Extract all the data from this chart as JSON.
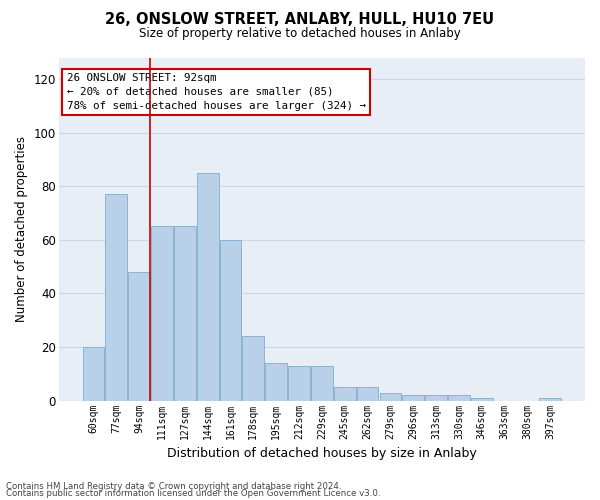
{
  "title1": "26, ONSLOW STREET, ANLABY, HULL, HU10 7EU",
  "title2": "Size of property relative to detached houses in Anlaby",
  "xlabel": "Distribution of detached houses by size in Anlaby",
  "ylabel": "Number of detached properties",
  "categories": [
    "60sqm",
    "77sqm",
    "94sqm",
    "111sqm",
    "127sqm",
    "144sqm",
    "161sqm",
    "178sqm",
    "195sqm",
    "212sqm",
    "229sqm",
    "245sqm",
    "262sqm",
    "279sqm",
    "296sqm",
    "313sqm",
    "330sqm",
    "346sqm",
    "363sqm",
    "380sqm",
    "397sqm"
  ],
  "values": [
    20,
    77,
    48,
    65,
    65,
    85,
    60,
    24,
    14,
    13,
    13,
    5,
    5,
    3,
    2,
    2,
    2,
    1,
    0,
    0,
    1
  ],
  "bar_color": "#b8d0e8",
  "bar_edge_color": "#8ab4d4",
  "grid_color": "#c8d8e8",
  "background_color": "#e8eef5",
  "red_line_index": 2,
  "annotation_line1": "26 ONSLOW STREET: 92sqm",
  "annotation_line2": "← 20% of detached houses are smaller (85)",
  "annotation_line3": "78% of semi-detached houses are larger (324) →",
  "annotation_box_color": "#ffffff",
  "annotation_box_edge_color": "#cc0000",
  "red_line_color": "#cc0000",
  "ylim": [
    0,
    128
  ],
  "yticks": [
    0,
    20,
    40,
    60,
    80,
    100,
    120
  ],
  "footer1": "Contains HM Land Registry data © Crown copyright and database right 2024.",
  "footer2": "Contains public sector information licensed under the Open Government Licence v3.0."
}
